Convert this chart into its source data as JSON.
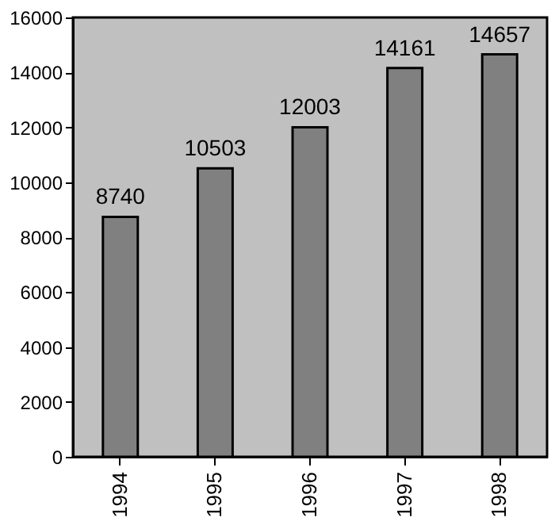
{
  "chart_data": {
    "type": "bar",
    "categories": [
      "1994",
      "1995",
      "1996",
      "1997",
      "1998"
    ],
    "values": [
      8740,
      10503,
      12003,
      14161,
      14657
    ],
    "color": "#808080",
    "ylim": [
      0,
      16000
    ],
    "yticks": [
      0,
      2000,
      4000,
      6000,
      8000,
      10000,
      12000,
      14000,
      16000
    ],
    "grid": false,
    "data_labels": true
  }
}
